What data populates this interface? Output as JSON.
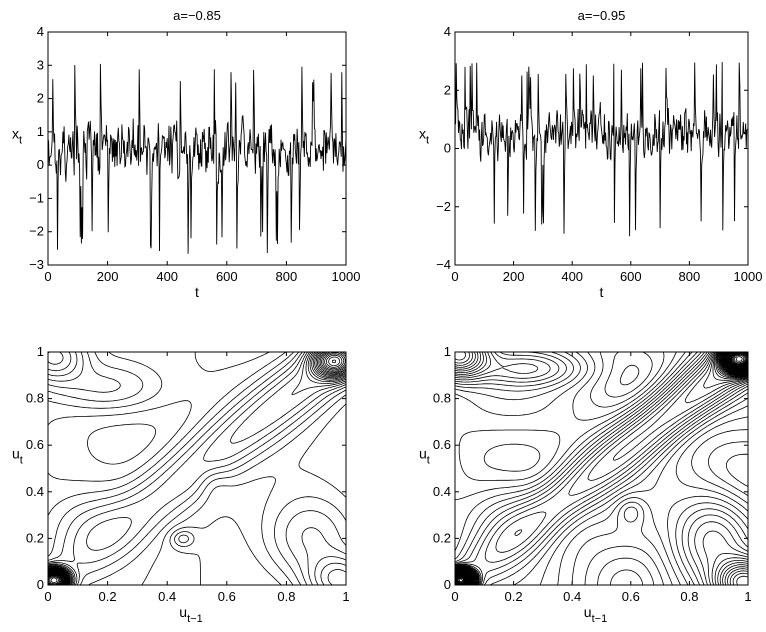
{
  "chart_data": [
    {
      "type": "line",
      "title": "a=−0.85",
      "xlabel": "t",
      "ylabel_main": "x",
      "ylabel_sub": "t",
      "xlim": [
        0,
        1000
      ],
      "ylim": [
        -3,
        4
      ],
      "xticks": [
        0,
        200,
        400,
        600,
        800,
        1000
      ],
      "yticks": [
        -3,
        -2,
        -1,
        0,
        1,
        2,
        3,
        4
      ],
      "xtick_labels": [
        "0",
        "200",
        "400",
        "600",
        "800",
        "1000"
      ],
      "ytick_labels": [
        "−3",
        "−2",
        "−1",
        "0",
        "1",
        "2",
        "3",
        "4"
      ],
      "series_seed": 17,
      "value_range": [
        -2.9,
        3.05
      ]
    },
    {
      "type": "line",
      "title": "a=−0.95",
      "xlabel": "t",
      "ylabel_main": "x",
      "ylabel_sub": "t",
      "xlim": [
        0,
        1000
      ],
      "ylim": [
        -4,
        4
      ],
      "xticks": [
        0,
        200,
        400,
        600,
        800,
        1000
      ],
      "yticks": [
        -4,
        -2,
        0,
        2,
        4
      ],
      "xtick_labels": [
        "0",
        "200",
        "400",
        "600",
        "800",
        "1000"
      ],
      "ytick_labels": [
        "−4",
        "−2",
        "0",
        "2",
        "4"
      ],
      "series_seed": 41,
      "value_range": [
        -3.1,
        3.05
      ]
    },
    {
      "type": "contour",
      "title": "",
      "xlabel_main": "u",
      "xlabel_sub": "t−1",
      "ylabel_main": "u",
      "ylabel_sub": "t",
      "xlim": [
        0,
        1
      ],
      "ylim": [
        0,
        1
      ],
      "xticks": [
        0,
        0.2,
        0.4,
        0.6,
        0.8,
        1
      ],
      "yticks": [
        0,
        0.2,
        0.4,
        0.6,
        0.8,
        1
      ],
      "xtick_labels": [
        "0",
        "0.2",
        "0.4",
        "0.6",
        "0.8",
        "1"
      ],
      "ytick_labels": [
        "0",
        "0.2",
        "0.4",
        "0.6",
        "0.8",
        "1"
      ],
      "levels": 30
    },
    {
      "type": "contour",
      "title": "",
      "xlabel_main": "u",
      "xlabel_sub": "t−1",
      "ylabel_main": "u",
      "ylabel_sub": "t",
      "xlim": [
        0,
        1
      ],
      "ylim": [
        0,
        1
      ],
      "xticks": [
        0,
        0.2,
        0.4,
        0.6,
        0.8,
        1
      ],
      "yticks": [
        0,
        0.2,
        0.4,
        0.6,
        0.8,
        1
      ],
      "xtick_labels": [
        "0",
        "0.2",
        "0.4",
        "0.6",
        "0.8",
        "1"
      ],
      "ytick_labels": [
        "0",
        "0.2",
        "0.4",
        "0.6",
        "0.8",
        "1"
      ],
      "levels": 48
    }
  ]
}
